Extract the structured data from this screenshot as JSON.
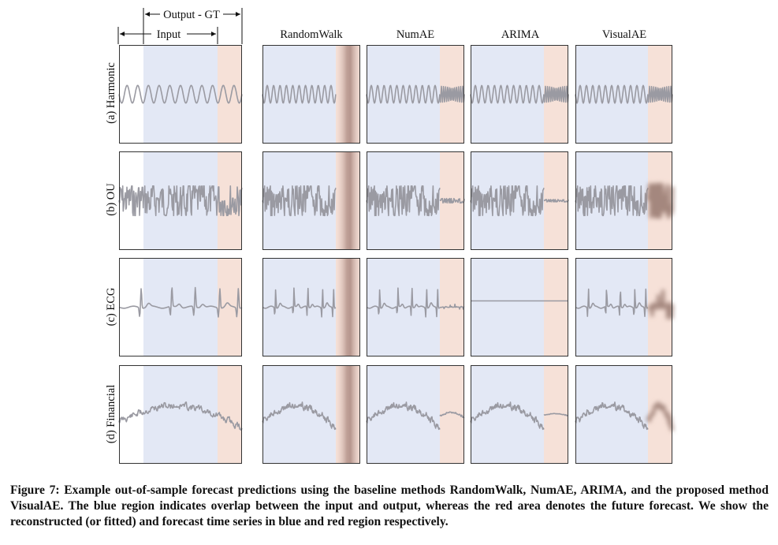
{
  "figure": {
    "legend_top": "Output - GT",
    "legend_bottom": "Input",
    "methods": [
      "RandomWalk",
      "NumAE",
      "ARIMA",
      "VisualAE"
    ],
    "rows": [
      "(a) Harmonic",
      "(b) OU",
      "(c) ECG",
      "(d) Financial"
    ],
    "colors": {
      "overlap_blue": "#e3e8f5",
      "forecast_red": "#f6e1d8",
      "series_gray": "#9a9aa2",
      "blur_brown": "#a4877e"
    }
  },
  "caption": {
    "label": "Figure 7:",
    "text": "Example out-of-sample forecast predictions using the baseline methods RandomWalk, NumAE, ARIMA, and the proposed method VisualAE. The blue region indicates overlap between the input and output, whereas the red area denotes the future forecast. We show the reconstructed (or fitted) and forecast time series in blue and red region respectively."
  }
}
